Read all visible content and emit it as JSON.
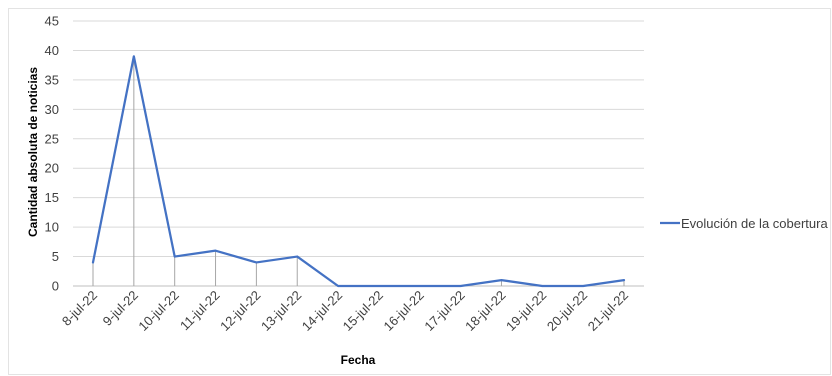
{
  "chart_data": {
    "type": "line",
    "categories": [
      "8-jul-22",
      "9-jul-22",
      "10-jul-22",
      "11-jul-22",
      "12-jul-22",
      "13-jul-22",
      "14-jul-22",
      "15-jul-22",
      "16-jul-22",
      "17-jul-22",
      "18-jul-22",
      "19-jul-22",
      "20-jul-22",
      "21-jul-22"
    ],
    "series": [
      {
        "name": "Evolución de la cobertura",
        "values": [
          4,
          39,
          5,
          6,
          4,
          5,
          0,
          0,
          0,
          0,
          1,
          0,
          0,
          1
        ],
        "color": "#4472c4"
      }
    ],
    "title": "",
    "xlabel": "Fecha",
    "ylabel": "Cantidad  absoluta de noticias",
    "ylim": [
      0,
      45
    ],
    "yticks": [
      0,
      5,
      10,
      15,
      20,
      25,
      30,
      35,
      40,
      45
    ],
    "grid": "horizontal",
    "drop_lines": true,
    "legend_position": "right"
  }
}
